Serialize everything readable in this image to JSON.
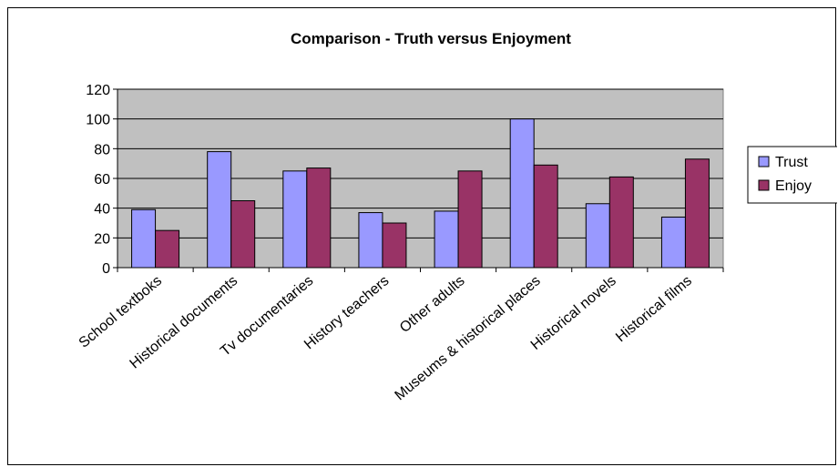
{
  "chart_data": {
    "type": "bar",
    "title": "Comparison - Truth versus Enjoyment",
    "xlabel": "",
    "ylabel": "",
    "ylim": [
      0,
      120
    ],
    "yticks": [
      0,
      20,
      40,
      60,
      80,
      100,
      120
    ],
    "categories": [
      "School textboks",
      "Historical documents",
      "Tv documentaries",
      "History teachers",
      "Other adults",
      "Museums & historical places",
      "Historical novels",
      "Historical films"
    ],
    "series": [
      {
        "name": "Trust",
        "color": "#9999FF",
        "values": [
          39,
          78,
          65,
          37,
          38,
          100,
          43,
          34
        ]
      },
      {
        "name": "Enjoy",
        "color": "#993366",
        "values": [
          25,
          45,
          67,
          30,
          65,
          69,
          61,
          73
        ]
      }
    ],
    "plot_background": "#C0C0C0",
    "grid": true,
    "legend_position": "right"
  }
}
